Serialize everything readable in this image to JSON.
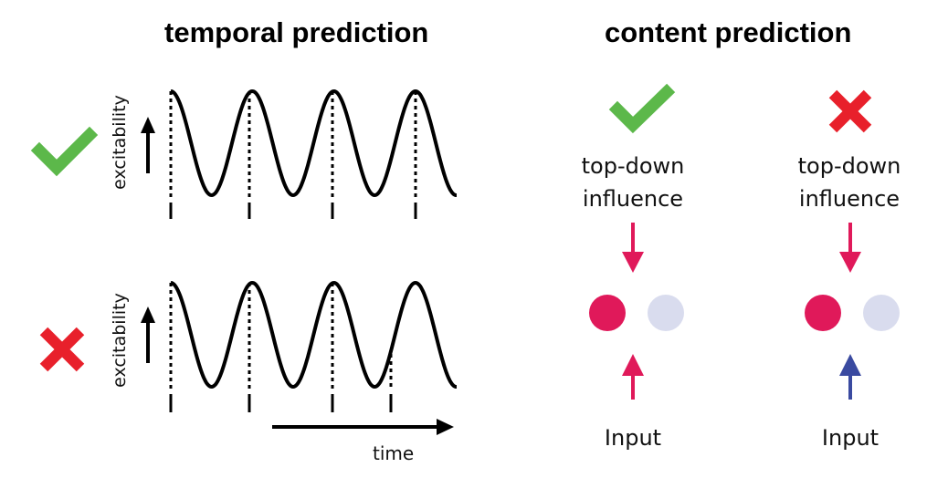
{
  "left_panel": {
    "title": "temporal prediction",
    "rows": [
      {
        "status": "correct",
        "ylabel": "excitability"
      },
      {
        "status": "incorrect",
        "ylabel": "excitability"
      }
    ],
    "time_label": "time"
  },
  "right_panel": {
    "title": "content prediction",
    "columns": [
      {
        "status": "correct",
        "top_label_1": "top-down",
        "top_label_2": "influence",
        "bottom_label": "Input"
      },
      {
        "status": "incorrect",
        "top_label_1": "top-down",
        "top_label_2": "influence",
        "bottom_label": "Input"
      }
    ]
  },
  "colors": {
    "check": "#5cb84a",
    "cross": "#e8202b",
    "magenta": "#e0195a",
    "pale": "#d9dcee",
    "blue": "#3a4aa0",
    "ink": "#000000"
  },
  "icons": [
    "check-icon",
    "cross-icon",
    "up-arrow-icon",
    "down-arrow-icon"
  ]
}
